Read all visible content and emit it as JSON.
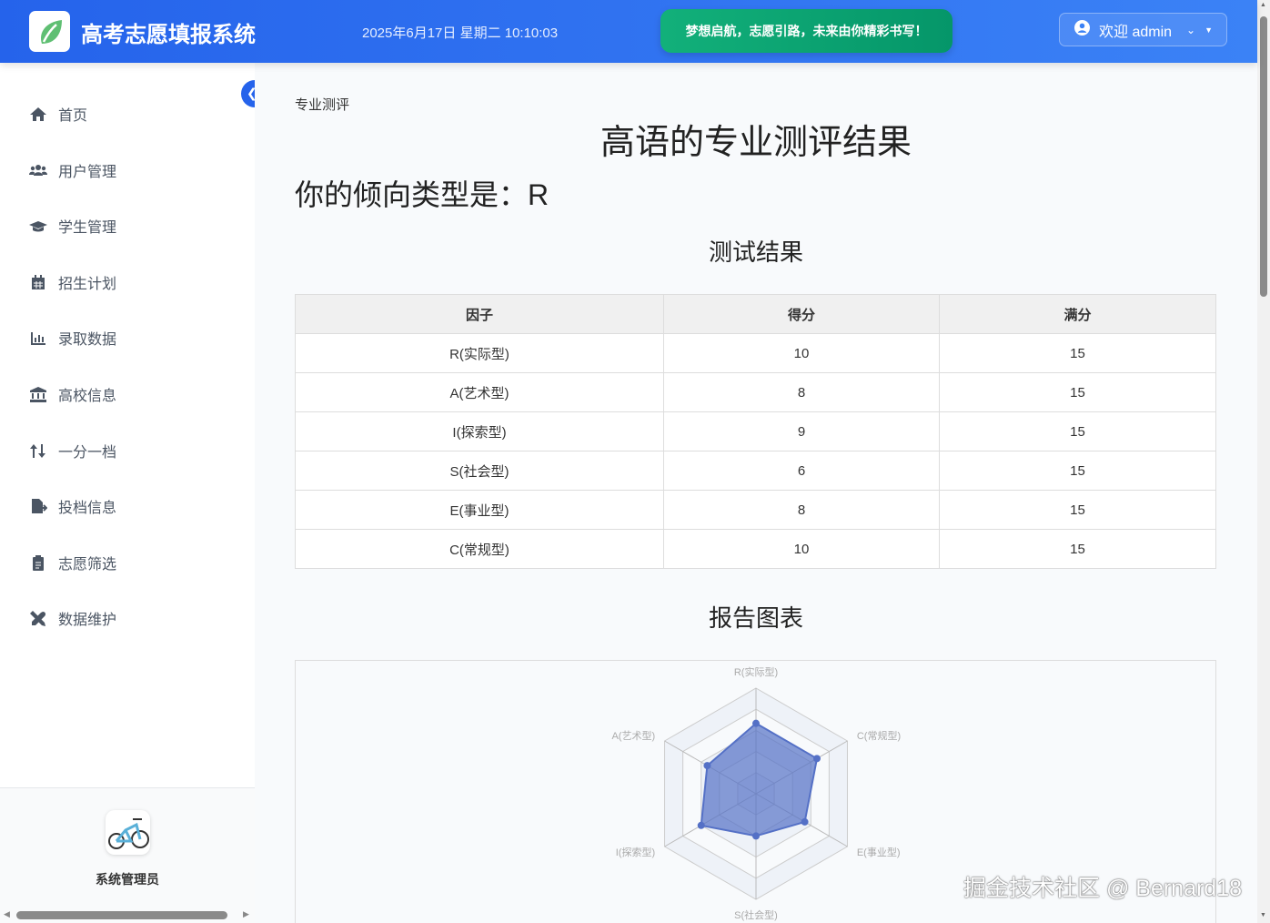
{
  "header": {
    "app_title": "高考志愿填报系统",
    "datetime": "2025年6月17日 星期二 10:10:03",
    "slogan": "梦想启航，志愿引路，未来由你精彩书写！",
    "user_label": "欢迎 admin"
  },
  "sidebar": {
    "items": [
      {
        "label": "首页",
        "icon": "home-icon"
      },
      {
        "label": "用户管理",
        "icon": "users-icon"
      },
      {
        "label": "学生管理",
        "icon": "graduation-cap-icon"
      },
      {
        "label": "招生计划",
        "icon": "calendar-icon"
      },
      {
        "label": "录取数据",
        "icon": "bar-chart-icon"
      },
      {
        "label": "高校信息",
        "icon": "university-icon"
      },
      {
        "label": "一分一档",
        "icon": "sort-icon"
      },
      {
        "label": "投档信息",
        "icon": "file-export-icon"
      },
      {
        "label": "志愿筛选",
        "icon": "clipboard-icon"
      },
      {
        "label": "数据维护",
        "icon": "tools-icon"
      }
    ],
    "role": "系统管理员"
  },
  "main": {
    "breadcrumb": "专业测评",
    "title": "高语的专业测评结果",
    "tendency": "你的倾向类型是：R",
    "result_title": "测试结果",
    "chart_title": "报告图表",
    "table": {
      "headers": [
        "因子",
        "得分",
        "满分"
      ],
      "rows": [
        [
          "R(实际型)",
          "10",
          "15"
        ],
        [
          "A(艺术型)",
          "8",
          "15"
        ],
        [
          "I(探索型)",
          "9",
          "15"
        ],
        [
          "S(社会型)",
          "6",
          "15"
        ],
        [
          "E(事业型)",
          "8",
          "15"
        ],
        [
          "C(常规型)",
          "10",
          "15"
        ]
      ]
    }
  },
  "chart_data": {
    "type": "radar",
    "indicators": [
      "R(实际型)",
      "C(常规型)",
      "E(事业型)",
      "S(社会型)",
      "I(探索型)",
      "A(艺术型)"
    ],
    "max": 15,
    "values": [
      10,
      10,
      8,
      6,
      9,
      8
    ],
    "color": "#5470c6"
  },
  "watermark": "掘金技术社区 @ Bernard18"
}
